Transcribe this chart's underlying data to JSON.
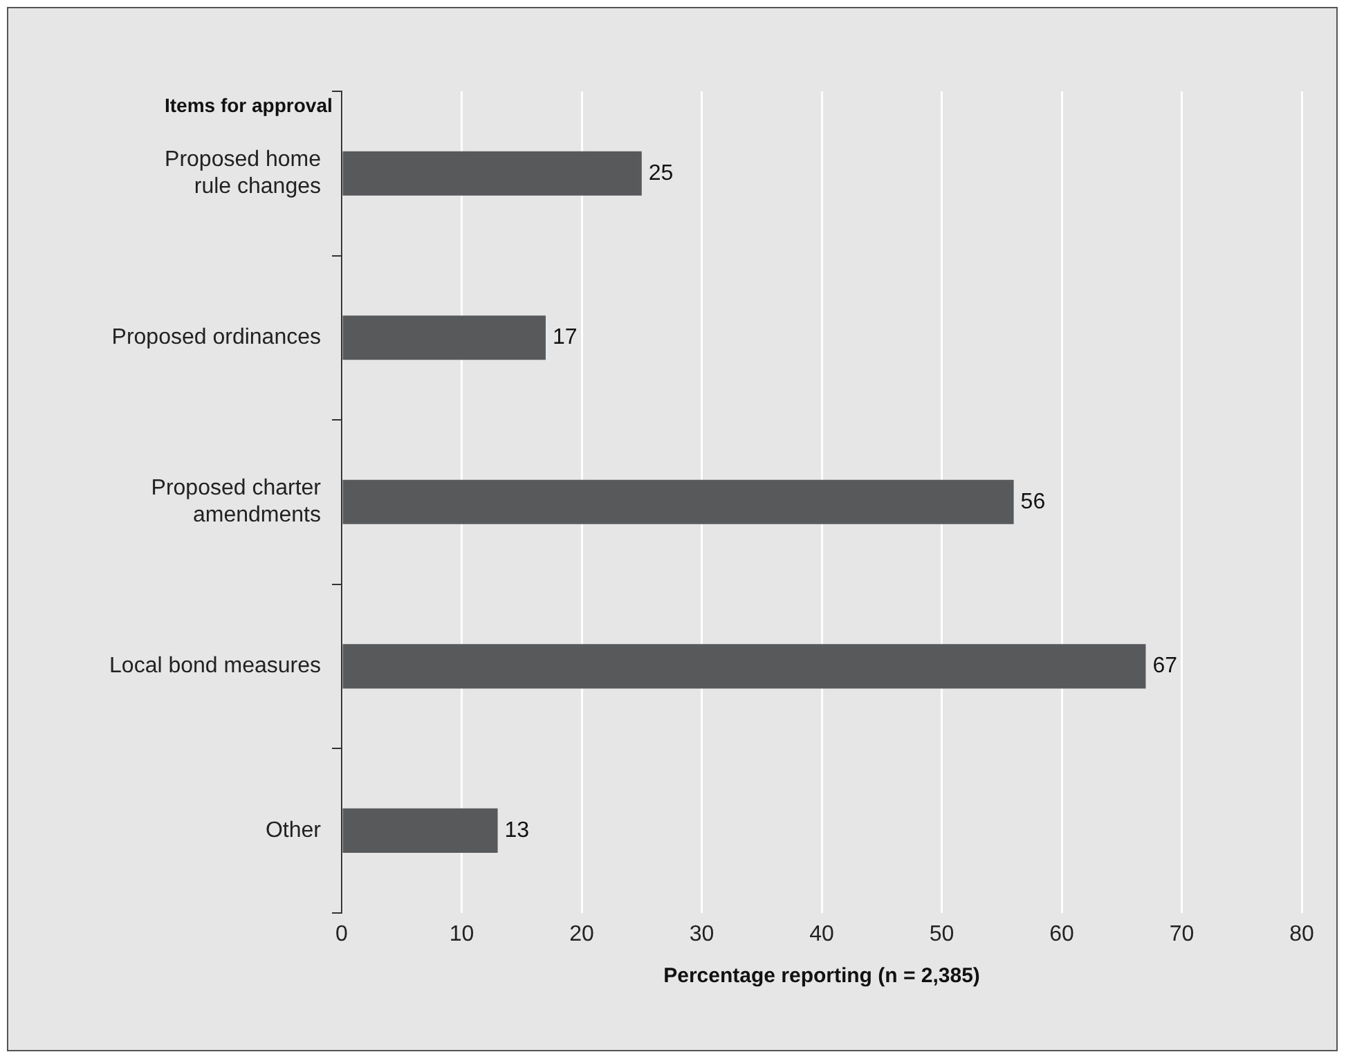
{
  "chart_data": {
    "type": "bar",
    "orientation": "horizontal",
    "ylabel": "Items for approval",
    "xlabel": "Percentage reporting (n = 2,385)",
    "categories": [
      "Proposed home rule changes",
      "Proposed ordinances",
      "Proposed charter amendments",
      "Local bond measures",
      "Other"
    ],
    "values": [
      25,
      17,
      56,
      67,
      13
    ],
    "color": "#58595b",
    "xlim": [
      0,
      80
    ],
    "xticks": [
      0,
      10,
      20,
      30,
      40,
      50,
      60,
      70,
      80
    ],
    "grid": "x",
    "data_labels": true,
    "legend": false
  }
}
